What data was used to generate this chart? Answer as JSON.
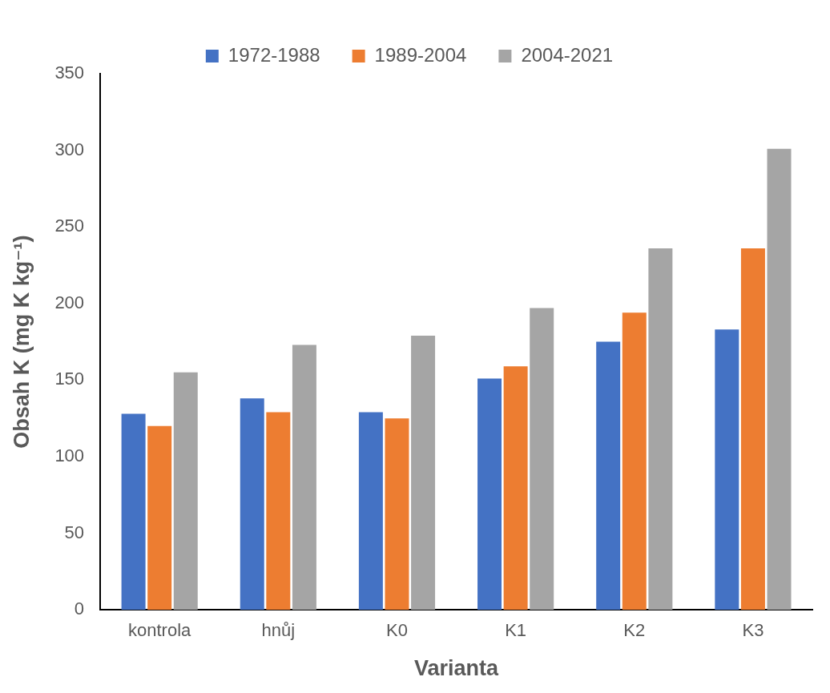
{
  "chart_data": {
    "type": "bar",
    "xlabel": "Varianta",
    "ylabel": "Obsah K (mg K kg⁻¹)",
    "categories": [
      "kontrola",
      "hnůj",
      "K0",
      "K1",
      "K2",
      "K3"
    ],
    "series": [
      {
        "name": "1972-1988",
        "color": "#4472c4",
        "values": [
          128,
          138,
          129,
          151,
          175,
          183
        ]
      },
      {
        "name": "1989-2004",
        "color": "#ed7d31",
        "values": [
          120,
          129,
          125,
          159,
          194,
          236
        ]
      },
      {
        "name": "2004-2021",
        "color": "#a5a5a5",
        "values": [
          155,
          173,
          179,
          197,
          236,
          301
        ]
      }
    ],
    "ylim": [
      0,
      350
    ],
    "yticks": [
      0,
      50,
      100,
      150,
      200,
      250,
      300,
      350
    ],
    "grid": false,
    "legend": "top"
  }
}
